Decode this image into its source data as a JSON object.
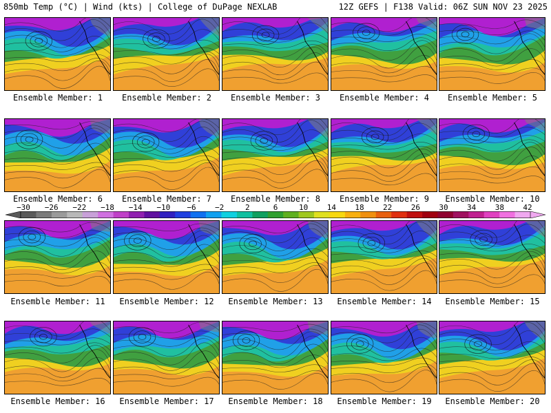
{
  "header": {
    "left": "850mb Temp (°C) | Wind (kts) | College of DuPage NEXLAB",
    "right": "12Z GEFS | F138 Valid: 06Z SUN NOV 23 2025"
  },
  "members": [
    "Ensemble Member: 1",
    "Ensemble Member: 2",
    "Ensemble Member: 3",
    "Ensemble Member: 4",
    "Ensemble Member: 5",
    "Ensemble Member: 6",
    "Ensemble Member: 7",
    "Ensemble Member: 8",
    "Ensemble Member: 9",
    "Ensemble Member: 10",
    "Ensemble Member: 11",
    "Ensemble Member: 12",
    "Ensemble Member: 13",
    "Ensemble Member: 14",
    "Ensemble Member: 15",
    "Ensemble Member: 16",
    "Ensemble Member: 17",
    "Ensemble Member: 18",
    "Ensemble Member: 19",
    "Ensemble Member: 20"
  ],
  "colorbar": {
    "labels": [
      "-30",
      "-26",
      "-22",
      "-18",
      "-14",
      "-10",
      "-6",
      "-2",
      "2",
      "6",
      "10",
      "14",
      "18",
      "22",
      "26",
      "30",
      "34",
      "38",
      "42"
    ],
    "colors": [
      "#5a5a5a",
      "#7a7a7a",
      "#9a9a9a",
      "#b8b8b8",
      "#c8a0d8",
      "#d070e0",
      "#c040c8",
      "#9020b0",
      "#6010a0",
      "#3020c0",
      "#2040e0",
      "#1070f0",
      "#10a0f0",
      "#10d0e0",
      "#10c0a0",
      "#10a060",
      "#30a030",
      "#60b020",
      "#a0c820",
      "#e0e020",
      "#f8d810",
      "#f8b010",
      "#f09010",
      "#e86010",
      "#e03010",
      "#c01010",
      "#a00010",
      "#900030",
      "#a01060",
      "#c02090",
      "#e040c0",
      "#f070e0",
      "#f0a8f0"
    ]
  },
  "map_colors": {
    "cold_top": "#b020d0",
    "cold": "#3040d8",
    "cool": "#20a0e8",
    "mild": "#20c0a0",
    "green": "#40a040",
    "warm": "#f0d020",
    "warmer": "#f0a030",
    "gray": "#808080"
  }
}
